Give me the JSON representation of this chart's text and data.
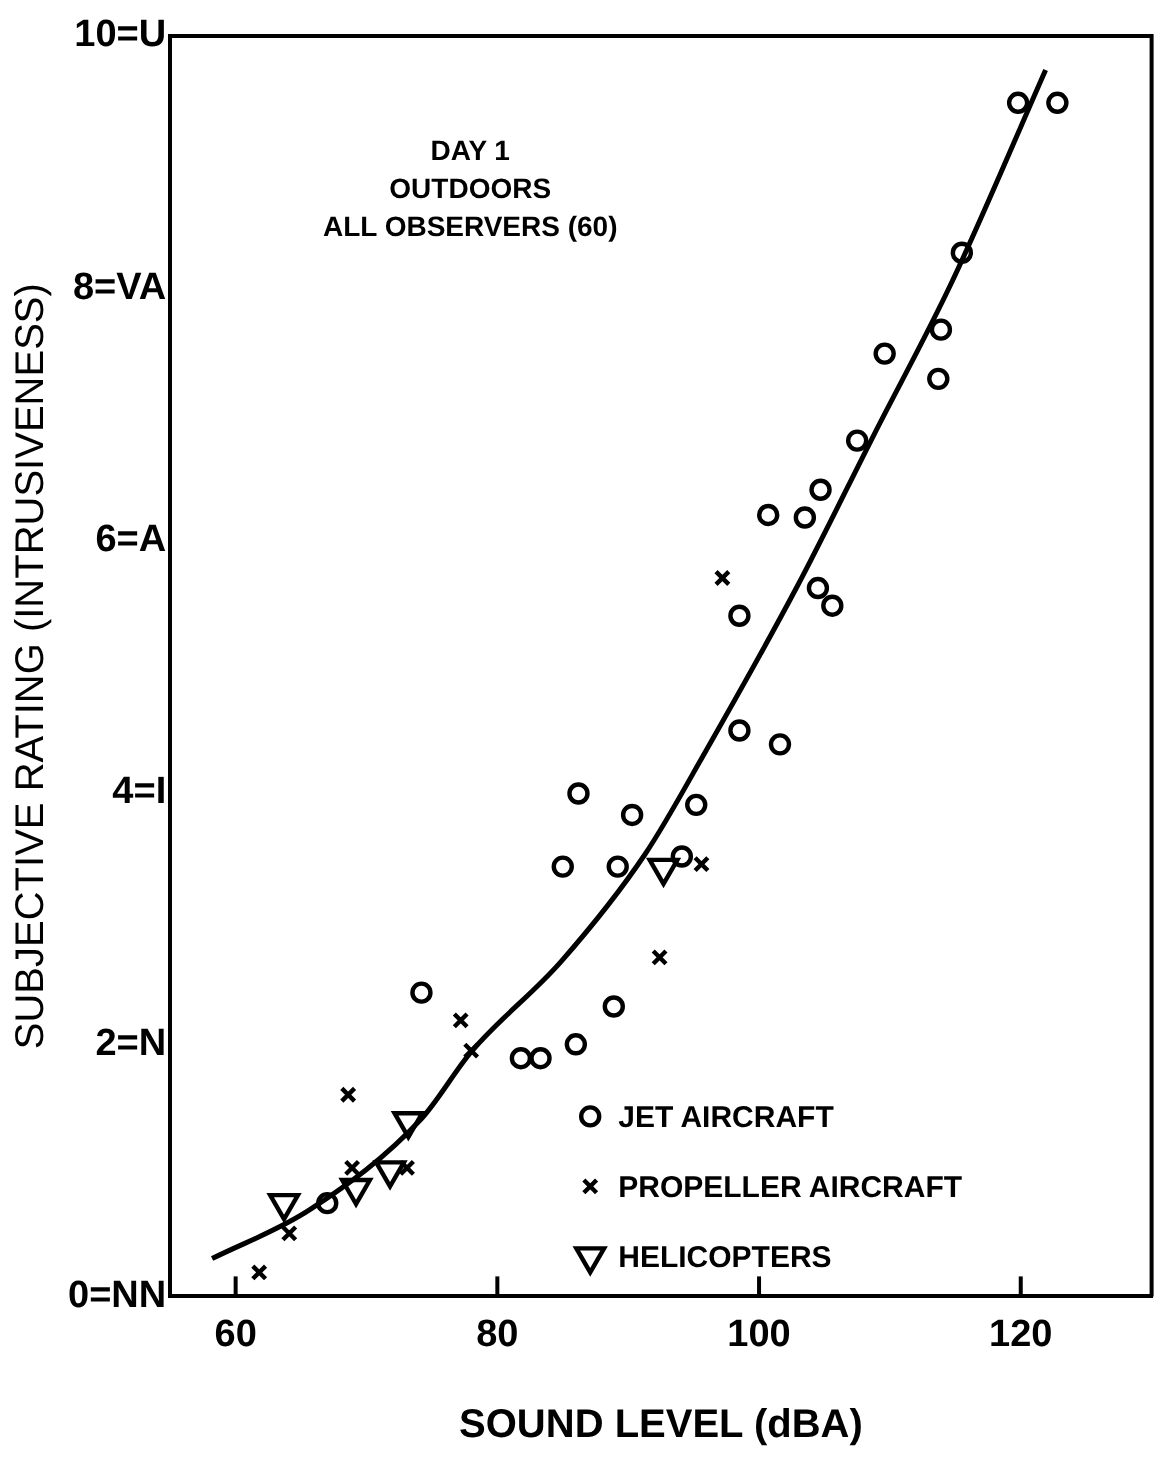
{
  "chart_data": {
    "type": "scatter",
    "xlabel": "SOUND LEVEL (dBA)",
    "ylabel": "SUBJECTIVE RATING (INTRUSIVENESS)",
    "annotations": [
      "DAY 1",
      "OUTDOORS",
      "ALL OBSERVERS (60)"
    ],
    "xlim": [
      55,
      130
    ],
    "xticks": [
      60,
      80,
      100,
      120
    ],
    "ylim": [
      0,
      10
    ],
    "yticks": [
      {
        "value": 0,
        "label": "0=NN"
      },
      {
        "value": 2,
        "label": "2=N"
      },
      {
        "value": 4,
        "label": "4=I"
      },
      {
        "value": 6,
        "label": "6=A"
      },
      {
        "value": 8,
        "label": "8=VA"
      },
      {
        "value": 10,
        "label": "10=U"
      }
    ],
    "grid": false,
    "legend": "bottom right",
    "series": [
      {
        "name": "JET AIRCRAFT",
        "type": "scatter",
        "marker": "circle",
        "color": "#000000",
        "x": [
          86.2,
          90.3,
          95.2,
          85.0,
          89.2,
          94.1,
          74.2,
          81.8,
          83.3,
          86.0,
          88.9,
          67.0,
          119.8,
          122.8,
          115.5,
          113.9,
          113.7,
          109.6,
          107.5,
          104.7,
          103.5,
          100.7,
          98.5,
          104.5,
          105.6,
          98.5,
          101.6
        ],
        "values": [
          3.99,
          3.82,
          3.9,
          3.41,
          3.41,
          3.49,
          2.41,
          1.89,
          1.89,
          2.0,
          2.3,
          0.74,
          9.47,
          9.47,
          8.28,
          7.67,
          7.28,
          7.48,
          6.79,
          6.4,
          6.18,
          6.2,
          5.4,
          5.62,
          5.48,
          4.49,
          4.38
        ]
      },
      {
        "name": "PROPELLER AIRCRAFT",
        "type": "scatter",
        "marker": "cross",
        "color": "#000000",
        "x": [
          92.4,
          77.2,
          78.0,
          68.6,
          68.9,
          73.1,
          64.1,
          61.8,
          95.6,
          97.2
        ],
        "values": [
          2.69,
          2.19,
          1.95,
          1.6,
          1.02,
          1.02,
          0.5,
          0.19,
          3.43,
          5.7
        ]
      },
      {
        "name": "HELICOPTERS",
        "type": "scatter",
        "marker": "triangle",
        "color": "#000000",
        "x": [
          73.2,
          69.2,
          71.8,
          63.7,
          92.7
        ],
        "values": [
          1.39,
          0.86,
          1.0,
          0.74,
          3.4
        ]
      },
      {
        "type": "line",
        "marker": "none",
        "line_style": "solid",
        "color": "#000000",
        "x": [
          58.2,
          65.7,
          74.2,
          78.0,
          84.9,
          91.3,
          96.0,
          102.9,
          108.8,
          114.7,
          121.9
        ],
        "values": [
          0.3,
          0.69,
          1.41,
          1.94,
          2.66,
          3.51,
          4.34,
          5.63,
          6.84,
          8.04,
          9.73
        ]
      }
    ]
  }
}
